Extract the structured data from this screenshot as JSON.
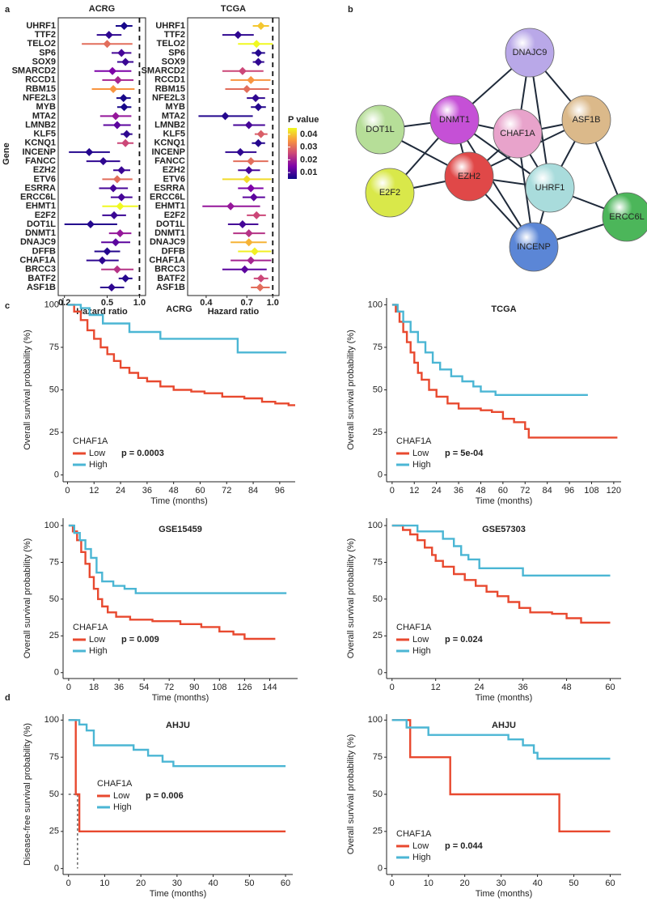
{
  "panel_labels": [
    "a",
    "b",
    "c",
    "d"
  ],
  "network": {
    "nodes": [
      "DNAJC9",
      "DNMT1",
      "CHAF1A",
      "ASF1B",
      "DOT1L",
      "E2F2",
      "EZH2",
      "UHRF1",
      "ERCC6L",
      "INCENP"
    ]
  },
  "colorbar": {
    "title": "P value",
    "lim": [
      0.005,
      0.045
    ],
    "ticks": [
      0.01,
      0.02,
      0.03,
      0.04
    ],
    "colors": [
      "#0d0887",
      "#7e03a8",
      "#cc4778",
      "#f89540",
      "#f0f921"
    ]
  },
  "chart_data": [
    {
      "type": "forest",
      "title": "ACRG",
      "xlabel": "Hazard ratio",
      "ylabel": "Gene",
      "log_x": true,
      "reference_line": 1,
      "xlim": [
        0.175,
        1.14
      ],
      "xticks": [
        0.2,
        0.5,
        {
          "value": 1,
          "label": "1.0"
        }
      ],
      "categories": [
        "UHRF1",
        "TTF2",
        "TELO2",
        "SP6",
        "SOX9",
        "SMARCD2",
        "RCCD1",
        "RBM15",
        "NFE2L3",
        "MYB",
        "MTA2",
        "LMNB2",
        "KLF5",
        "KCNQ1",
        "INCENP",
        "FANCC",
        "EZH2",
        "ETV6",
        "ESRRA",
        "ERCC6L",
        "EHMT1",
        "E2F2",
        "DOT1L",
        "DNMT1",
        "DNAJC9",
        "DFFB",
        "CHAF1A",
        "BRCC3",
        "BATF2",
        "ASF1B"
      ],
      "values": [
        0.72,
        0.52,
        0.5,
        0.68,
        0.74,
        0.56,
        0.63,
        0.57,
        0.71,
        0.72,
        0.6,
        0.62,
        0.76,
        0.74,
        0.34,
        0.46,
        0.68,
        0.62,
        0.57,
        0.68,
        0.66,
        0.58,
        0.35,
        0.66,
        0.6,
        0.5,
        0.45,
        0.62,
        0.74,
        0.55
      ],
      "lower": [
        0.6,
        0.4,
        0.29,
        0.55,
        0.62,
        0.38,
        0.45,
        0.36,
        0.61,
        0.62,
        0.43,
        0.46,
        0.67,
        0.62,
        0.22,
        0.32,
        0.57,
        0.45,
        0.42,
        0.54,
        0.45,
        0.45,
        0.2,
        0.52,
        0.44,
        0.38,
        0.32,
        0.44,
        0.64,
        0.43
      ],
      "upper": [
        0.86,
        0.68,
        0.86,
        0.84,
        0.88,
        0.84,
        0.88,
        0.9,
        0.83,
        0.84,
        0.84,
        0.83,
        0.86,
        0.88,
        0.53,
        0.66,
        0.82,
        0.86,
        0.78,
        0.86,
        0.97,
        0.75,
        0.62,
        0.84,
        0.82,
        0.66,
        0.64,
        0.88,
        0.86,
        0.72
      ],
      "p_values": [
        0.006,
        0.008,
        0.03,
        0.01,
        0.009,
        0.015,
        0.02,
        0.035,
        0.006,
        0.006,
        0.018,
        0.012,
        0.008,
        0.025,
        0.007,
        0.008,
        0.009,
        0.03,
        0.01,
        0.01,
        0.045,
        0.009,
        0.007,
        0.018,
        0.012,
        0.007,
        0.008,
        0.022,
        0.007,
        0.008
      ]
    },
    {
      "type": "forest",
      "title": "TCGA",
      "xlabel": "Hazard ratio",
      "log_x": true,
      "reference_line": 1,
      "xlim": [
        0.31,
        1.09
      ],
      "xticks": [
        0.4,
        0.7,
        {
          "value": 1,
          "label": "1.0"
        }
      ],
      "categories": [
        "UHRF1",
        "TTF2",
        "TELO2",
        "SP6",
        "SOX9",
        "SMARCD2",
        "RCCD1",
        "RBM15",
        "NFE2L3",
        "MYB",
        "MTA2",
        "LMNB2",
        "KLF5",
        "KCNQ1",
        "INCENP",
        "FANCC",
        "EZH2",
        "ETV6",
        "ESRRA",
        "ERCC6L",
        "EHMT1",
        "E2F2",
        "DOT1L",
        "DNMT1",
        "DNAJC9",
        "DFFB",
        "CHAF1A",
        "BRCC3",
        "BATF2",
        "ASF1B"
      ],
      "values": [
        0.85,
        0.62,
        0.8,
        0.82,
        0.82,
        0.66,
        0.74,
        0.7,
        0.79,
        0.82,
        0.52,
        0.72,
        0.85,
        0.82,
        0.64,
        0.74,
        0.72,
        0.7,
        0.74,
        0.77,
        0.56,
        0.8,
        0.66,
        0.72,
        0.72,
        0.78,
        0.74,
        0.68,
        0.85,
        0.84
      ],
      "lower": [
        0.76,
        0.5,
        0.62,
        0.75,
        0.76,
        0.5,
        0.56,
        0.52,
        0.7,
        0.74,
        0.36,
        0.58,
        0.78,
        0.75,
        0.52,
        0.58,
        0.62,
        0.5,
        0.62,
        0.66,
        0.38,
        0.7,
        0.54,
        0.58,
        0.56,
        0.62,
        0.56,
        0.5,
        0.77,
        0.74
      ],
      "upper": [
        0.95,
        0.77,
        1.0,
        0.9,
        0.89,
        0.88,
        0.97,
        0.95,
        0.9,
        0.91,
        0.76,
        0.9,
        0.93,
        0.9,
        0.8,
        0.94,
        0.84,
        0.98,
        0.88,
        0.9,
        0.84,
        0.91,
        0.82,
        0.9,
        0.92,
        0.98,
        0.98,
        0.92,
        0.94,
        0.96
      ],
      "p_values": [
        0.04,
        0.008,
        0.045,
        0.007,
        0.008,
        0.025,
        0.035,
        0.03,
        0.008,
        0.007,
        0.007,
        0.01,
        0.028,
        0.007,
        0.008,
        0.03,
        0.01,
        0.042,
        0.015,
        0.012,
        0.018,
        0.025,
        0.01,
        0.022,
        0.038,
        0.044,
        0.02,
        0.012,
        0.025,
        0.03
      ]
    },
    {
      "type": "km",
      "title": "ACRG",
      "xlabel": "Time (months)",
      "ylabel": "Overall survival probability (%)",
      "xlim": [
        -2,
        103
      ],
      "xticks": [
        0,
        12,
        24,
        36,
        48,
        60,
        72,
        84,
        96
      ],
      "ylim": [
        -4,
        104
      ],
      "yticks": [
        0,
        25,
        50,
        75,
        100
      ],
      "legend_title": "CHAF1A",
      "annotation": "p = 0.0003",
      "series": [
        {
          "name": "Low",
          "color": "#e8492f",
          "x": [
            0,
            3,
            3,
            6,
            6,
            9,
            9,
            12,
            12,
            15,
            15,
            18,
            18,
            21,
            21,
            24,
            24,
            28,
            28,
            32,
            32,
            36,
            36,
            42,
            42,
            48,
            48,
            56,
            56,
            62,
            62,
            70,
            70,
            80,
            80,
            88,
            88,
            94,
            94,
            100,
            100,
            103
          ],
          "values": [
            100,
            100,
            96,
            96,
            91,
            91,
            85,
            85,
            80,
            80,
            75,
            75,
            71,
            71,
            67,
            67,
            63,
            63,
            60,
            60,
            57,
            57,
            55,
            55,
            52,
            52,
            50,
            50,
            49,
            49,
            48,
            48,
            46,
            46,
            45,
            45,
            43,
            43,
            42,
            42,
            41,
            41
          ]
        },
        {
          "name": "High",
          "color": "#4bb6d4",
          "x": [
            0,
            6,
            6,
            10,
            10,
            16,
            16,
            28,
            28,
            42,
            42,
            77,
            77,
            99
          ],
          "values": [
            100,
            100,
            98,
            98,
            94,
            94,
            89,
            89,
            84,
            84,
            80,
            80,
            72,
            72
          ]
        }
      ]
    },
    {
      "type": "km",
      "title": "TCGA",
      "xlabel": "Time (months)",
      "ylabel": "Overall survival probability (%)",
      "xlim": [
        -3,
        124
      ],
      "xticks": [
        0,
        12,
        24,
        36,
        48,
        60,
        72,
        84,
        96,
        108,
        120
      ],
      "ylim": [
        -4,
        104
      ],
      "yticks": [
        0,
        25,
        50,
        75,
        100
      ],
      "legend_title": "CHAF1A",
      "annotation": "p = 5e-04",
      "series": [
        {
          "name": "Low",
          "color": "#e8492f",
          "x": [
            0,
            2,
            2,
            4,
            4,
            6,
            6,
            8,
            8,
            10,
            10,
            12,
            12,
            14,
            14,
            16,
            16,
            20,
            20,
            24,
            24,
            30,
            30,
            36,
            36,
            48,
            48,
            54,
            54,
            60,
            60,
            66,
            66,
            72,
            72,
            74,
            74,
            122
          ],
          "values": [
            100,
            100,
            96,
            96,
            90,
            90,
            84,
            84,
            78,
            78,
            72,
            72,
            66,
            66,
            60,
            60,
            56,
            56,
            50,
            50,
            46,
            46,
            42,
            42,
            39,
            39,
            38,
            38,
            37,
            37,
            33,
            33,
            31,
            31,
            27,
            27,
            22,
            22
          ]
        },
        {
          "name": "High",
          "color": "#4bb6d4",
          "x": [
            0,
            3,
            3,
            6,
            6,
            10,
            10,
            14,
            14,
            18,
            18,
            22,
            22,
            26,
            26,
            32,
            32,
            38,
            38,
            44,
            44,
            48,
            48,
            56,
            56,
            106
          ],
          "values": [
            100,
            100,
            96,
            96,
            90,
            90,
            84,
            84,
            78,
            78,
            72,
            72,
            66,
            66,
            62,
            62,
            58,
            58,
            55,
            55,
            52,
            52,
            49,
            49,
            47,
            47
          ]
        }
      ]
    },
    {
      "type": "km",
      "title": "GSE15459",
      "xlabel": "Time (months)",
      "ylabel": "Overall survival probability (%)",
      "xlim": [
        -4,
        164
      ],
      "xticks": [
        0,
        18,
        36,
        54,
        72,
        90,
        108,
        126,
        144
      ],
      "ylim": [
        -4,
        105
      ],
      "yticks": [
        0,
        25,
        50,
        75,
        100
      ],
      "legend_title": "CHAF1A",
      "annotation": "p = 0.009",
      "series": [
        {
          "name": "Low",
          "color": "#e8492f",
          "x": [
            0,
            3,
            3,
            6,
            6,
            9,
            9,
            12,
            12,
            15,
            15,
            18,
            18,
            21,
            21,
            24,
            24,
            28,
            28,
            34,
            34,
            44,
            44,
            60,
            60,
            80,
            80,
            95,
            95,
            108,
            108,
            118,
            118,
            126,
            126,
            148
          ],
          "values": [
            100,
            100,
            96,
            96,
            90,
            90,
            82,
            82,
            74,
            74,
            65,
            65,
            57,
            57,
            50,
            50,
            45,
            45,
            41,
            41,
            38,
            38,
            36,
            36,
            35,
            35,
            33,
            33,
            31,
            31,
            28,
            28,
            26,
            26,
            23,
            23
          ]
        },
        {
          "name": "High",
          "color": "#4bb6d4",
          "x": [
            0,
            4,
            4,
            8,
            8,
            12,
            12,
            16,
            16,
            20,
            20,
            24,
            24,
            32,
            32,
            40,
            40,
            48,
            48,
            156
          ],
          "values": [
            100,
            100,
            95,
            95,
            90,
            90,
            84,
            84,
            78,
            78,
            68,
            68,
            62,
            62,
            59,
            59,
            57,
            57,
            54,
            54
          ]
        }
      ]
    },
    {
      "type": "km",
      "title": "GSE57303",
      "xlabel": "Time (months)",
      "ylabel": "Overall survival probability (%)",
      "xlim": [
        -1.5,
        63
      ],
      "xticks": [
        0,
        12,
        24,
        36,
        48,
        60
      ],
      "ylim": [
        -4,
        105
      ],
      "yticks": [
        0,
        25,
        50,
        75,
        100
      ],
      "legend_title": "CHAF1A",
      "annotation": "p = 0.024",
      "series": [
        {
          "name": "Low",
          "color": "#e8492f",
          "x": [
            0,
            3,
            3,
            5,
            5,
            7,
            7,
            9,
            9,
            11,
            11,
            12,
            12,
            14,
            14,
            17,
            17,
            20,
            20,
            23,
            23,
            26,
            26,
            29,
            29,
            32,
            32,
            35,
            35,
            38,
            38,
            44,
            44,
            48,
            48,
            52,
            52,
            60
          ],
          "values": [
            100,
            100,
            97,
            97,
            94,
            94,
            90,
            90,
            85,
            85,
            80,
            80,
            76,
            76,
            72,
            72,
            67,
            67,
            63,
            63,
            59,
            59,
            55,
            55,
            52,
            52,
            48,
            48,
            44,
            44,
            41,
            41,
            40,
            40,
            37,
            37,
            34,
            34
          ]
        },
        {
          "name": "High",
          "color": "#4bb6d4",
          "x": [
            0,
            7,
            7,
            14,
            14,
            17,
            17,
            19,
            19,
            21,
            21,
            24,
            24,
            36,
            36,
            60
          ],
          "values": [
            100,
            100,
            96,
            96,
            91,
            91,
            86,
            86,
            80,
            80,
            77,
            77,
            71,
            71,
            66,
            66
          ]
        }
      ]
    },
    {
      "type": "km",
      "title": "AHJU",
      "xlabel": "Time (months)",
      "ylabel": "Disease-free survival probability (%)",
      "xlim": [
        -1.5,
        62
      ],
      "xticks": [
        0,
        10,
        20,
        30,
        40,
        50,
        60
      ],
      "ylim": [
        -4,
        104
      ],
      "yticks": [
        0,
        25,
        50,
        75,
        100
      ],
      "legend_title": "CHAF1A",
      "annotation": "p = 0.006",
      "median": {
        "x": 2.5,
        "y": 50
      },
      "series": [
        {
          "name": "Low",
          "color": "#e8492f",
          "x": [
            0,
            2,
            2,
            3,
            3,
            60
          ],
          "values": [
            100,
            100,
            50,
            50,
            25,
            25
          ]
        },
        {
          "name": "High",
          "color": "#4bb6d4",
          "x": [
            0,
            3,
            3,
            5,
            5,
            7,
            7,
            18,
            18,
            22,
            22,
            26,
            26,
            29,
            29,
            60
          ],
          "values": [
            100,
            100,
            97,
            97,
            93,
            93,
            83,
            83,
            80,
            80,
            76,
            76,
            72,
            72,
            69,
            69
          ]
        }
      ]
    },
    {
      "type": "km",
      "title": "AHJU",
      "xlabel": "Time (months)",
      "ylabel": "Overall survival probability (%)",
      "xlim": [
        -1.5,
        63
      ],
      "xticks": [
        0,
        10,
        20,
        30,
        40,
        50,
        60
      ],
      "ylim": [
        -4,
        104
      ],
      "yticks": [
        0,
        25,
        50,
        75,
        100
      ],
      "legend_title": "CHAF1A",
      "annotation": "p = 0.044",
      "series": [
        {
          "name": "Low",
          "color": "#e8492f",
          "x": [
            0,
            5,
            5,
            16,
            16,
            46,
            46,
            60
          ],
          "values": [
            100,
            100,
            75,
            75,
            50,
            50,
            25,
            25
          ]
        },
        {
          "name": "High",
          "color": "#4bb6d4",
          "x": [
            0,
            4,
            4,
            10,
            10,
            32,
            32,
            36,
            36,
            39,
            39,
            40,
            40,
            60
          ],
          "values": [
            100,
            100,
            95,
            95,
            90,
            90,
            87,
            87,
            83,
            83,
            78,
            78,
            74,
            74
          ]
        }
      ]
    }
  ]
}
